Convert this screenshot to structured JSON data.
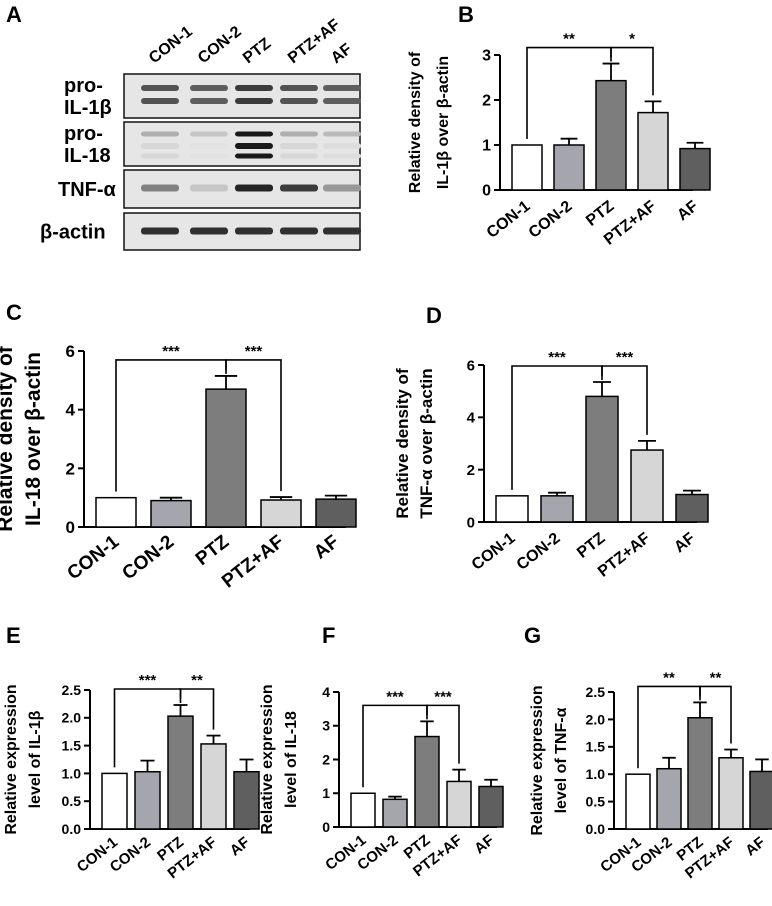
{
  "figure": {
    "blot": {
      "letter": "A",
      "lanes": [
        "CON-1",
        "CON-2",
        "PTZ",
        "PTZ+AF",
        "AF"
      ],
      "rows": [
        {
          "label_lines": [
            "pro-",
            "IL-1β"
          ],
          "intensity": [
            0.75,
            0.7,
            0.85,
            0.75,
            0.7
          ]
        },
        {
          "label_lines": [
            "pro-",
            "IL-18"
          ],
          "intensity": [
            0.35,
            0.25,
            1.0,
            0.35,
            0.3
          ]
        },
        {
          "label_lines": [
            "TNF-α"
          ],
          "intensity": [
            0.55,
            0.25,
            0.95,
            0.85,
            0.45
          ]
        },
        {
          "label_lines": [
            "β-actin"
          ],
          "intensity": [
            0.9,
            0.9,
            0.9,
            0.9,
            0.9
          ]
        }
      ]
    },
    "colors": {
      "CON-1": "#ffffff",
      "CON-2": "#a5a5ad",
      "PTZ": "#7d7d7d",
      "PTZ+AF": "#d6d6d6",
      "AF": "#5f5f5f"
    }
  },
  "chart_data": [
    {
      "id": "B",
      "letter": "B",
      "type": "bar",
      "ylabel_lines": [
        "Relative density of",
        "IL-1β over β-actin"
      ],
      "categories": [
        "CON-1",
        "CON-2",
        "PTZ",
        "PTZ+AF",
        "AF"
      ],
      "values": [
        1.0,
        1.0,
        2.43,
        1.72,
        0.92
      ],
      "errors": [
        0,
        0.14,
        0.38,
        0.25,
        0.13
      ],
      "ylim": [
        0,
        3
      ],
      "yticks": [
        "0",
        "1",
        "2",
        "3"
      ],
      "ytick_values": [
        0,
        1,
        2,
        3
      ],
      "significance": [
        {
          "from": 0,
          "to": 2,
          "label": "**"
        },
        {
          "from": 2,
          "to": 3,
          "label": "*"
        }
      ]
    },
    {
      "id": "C",
      "letter": "C",
      "type": "bar",
      "ylabel_lines": [
        "Relative density of",
        "IL-18 over β-actin"
      ],
      "categories": [
        "CON-1",
        "CON-2",
        "PTZ",
        "PTZ+AF",
        "AF"
      ],
      "values": [
        1.0,
        0.9,
        4.7,
        0.92,
        0.95
      ],
      "errors": [
        0,
        0.1,
        0.45,
        0.1,
        0.12
      ],
      "ylim": [
        0,
        6
      ],
      "yticks": [
        "0",
        "2",
        "4",
        "6"
      ],
      "ytick_values": [
        0,
        2,
        4,
        6
      ],
      "significance": [
        {
          "from": 0,
          "to": 2,
          "label": "***"
        },
        {
          "from": 2,
          "to": 3,
          "label": "***"
        }
      ]
    },
    {
      "id": "D",
      "letter": "D",
      "type": "bar",
      "ylabel_lines": [
        "Relative density of",
        "TNF-α over β-actin"
      ],
      "categories": [
        "CON-1",
        "CON-2",
        "PTZ",
        "PTZ+AF",
        "AF"
      ],
      "values": [
        1.0,
        1.0,
        4.8,
        2.75,
        1.05
      ],
      "errors": [
        0,
        0.12,
        0.55,
        0.35,
        0.15
      ],
      "ylim": [
        0,
        6
      ],
      "yticks": [
        "0",
        "2",
        "4",
        "6"
      ],
      "ytick_values": [
        0,
        2,
        4,
        6
      ],
      "significance": [
        {
          "from": 0,
          "to": 2,
          "label": "***"
        },
        {
          "from": 2,
          "to": 3,
          "label": "***"
        }
      ]
    },
    {
      "id": "E",
      "letter": "E",
      "type": "bar",
      "ylabel_lines": [
        "Relative expression",
        "level of IL-1β"
      ],
      "categories": [
        "CON-1",
        "CON-2",
        "PTZ",
        "PTZ+AF",
        "AF"
      ],
      "values": [
        1.0,
        1.03,
        2.03,
        1.53,
        1.03
      ],
      "errors": [
        0,
        0.2,
        0.2,
        0.15,
        0.22
      ],
      "ylim": [
        0,
        2.5
      ],
      "yticks": [
        "0.0",
        "0.5",
        "1.0",
        "1.5",
        "2.0",
        "2.5"
      ],
      "ytick_values": [
        0,
        0.5,
        1.0,
        1.5,
        2.0,
        2.5
      ],
      "significance": [
        {
          "from": 0,
          "to": 2,
          "label": "***"
        },
        {
          "from": 2,
          "to": 3,
          "label": "**"
        }
      ]
    },
    {
      "id": "F",
      "letter": "F",
      "type": "bar",
      "ylabel_lines": [
        "Relative expression",
        "level of IL-18"
      ],
      "categories": [
        "CON-1",
        "CON-2",
        "PTZ",
        "PTZ+AF",
        "AF"
      ],
      "values": [
        1.0,
        0.82,
        2.68,
        1.35,
        1.2
      ],
      "errors": [
        0,
        0.08,
        0.45,
        0.35,
        0.2
      ],
      "ylim": [
        0,
        4
      ],
      "yticks": [
        "0",
        "1",
        "2",
        "3",
        "4"
      ],
      "ytick_values": [
        0,
        1,
        2,
        3,
        4
      ],
      "significance": [
        {
          "from": 0,
          "to": 2,
          "label": "***"
        },
        {
          "from": 2,
          "to": 3,
          "label": "***"
        }
      ]
    },
    {
      "id": "G",
      "letter": "G",
      "type": "bar",
      "ylabel_lines": [
        "Relative expression",
        "level of TNF-α"
      ],
      "categories": [
        "CON-1",
        "CON-2",
        "PTZ",
        "PTZ+AF",
        "AF"
      ],
      "values": [
        1.0,
        1.1,
        2.03,
        1.3,
        1.05
      ],
      "errors": [
        0,
        0.2,
        0.28,
        0.15,
        0.22
      ],
      "ylim": [
        0,
        2.5
      ],
      "yticks": [
        "0.0",
        "0.5",
        "1.0",
        "1.5",
        "2.0",
        "2.5"
      ],
      "ytick_values": [
        0,
        0.5,
        1.0,
        1.5,
        2.0,
        2.5
      ],
      "significance": [
        {
          "from": 0,
          "to": 2,
          "label": "**"
        },
        {
          "from": 2,
          "to": 3,
          "label": "**"
        }
      ]
    }
  ]
}
